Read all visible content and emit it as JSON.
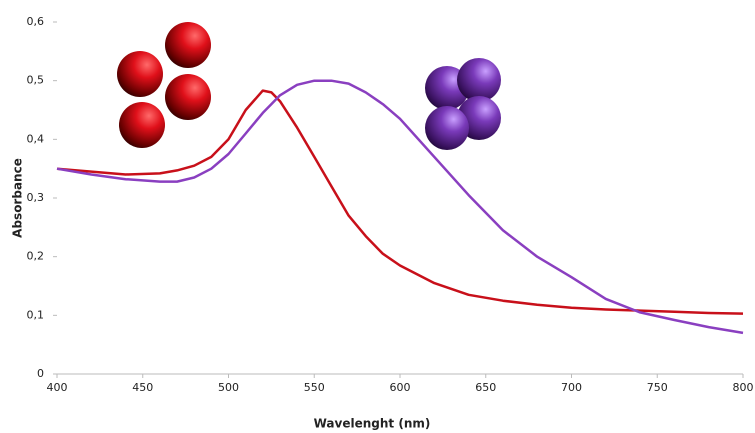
{
  "chart_data": {
    "type": "line",
    "x_label": "Wavelenght (nm)",
    "y_label": "Absorbance",
    "x": [
      400,
      420,
      440,
      460,
      470,
      480,
      490,
      500,
      510,
      520,
      525,
      530,
      540,
      550,
      560,
      570,
      580,
      590,
      600,
      620,
      640,
      660,
      680,
      700,
      720,
      740,
      760,
      780,
      800
    ],
    "series": [
      {
        "color": "#c8101a",
        "values": [
          0.35,
          0.345,
          0.34,
          0.342,
          0.347,
          0.355,
          0.37,
          0.4,
          0.45,
          0.483,
          0.48,
          0.465,
          0.42,
          0.37,
          0.32,
          0.27,
          0.235,
          0.205,
          0.185,
          0.155,
          0.135,
          0.125,
          0.118,
          0.113,
          0.11,
          0.108,
          0.106,
          0.104,
          0.103
        ]
      },
      {
        "color": "#8a3fc0",
        "values": [
          0.35,
          0.34,
          0.332,
          0.328,
          0.328,
          0.335,
          0.35,
          0.375,
          0.41,
          0.445,
          0.46,
          0.475,
          0.493,
          0.5,
          0.5,
          0.495,
          0.48,
          0.46,
          0.435,
          0.37,
          0.305,
          0.245,
          0.2,
          0.165,
          0.128,
          0.105,
          0.092,
          0.08,
          0.07
        ]
      }
    ],
    "xlim": [
      400,
      800
    ],
    "xticks": [
      400,
      450,
      500,
      550,
      600,
      650,
      700,
      750,
      800
    ],
    "ylim": [
      0,
      0.6
    ],
    "yticks": [
      0,
      {
        "value": 0.1,
        "label": "0,1"
      },
      {
        "value": 0.2,
        "label": "0,2"
      },
      {
        "value": 0.3,
        "label": "0,3"
      },
      {
        "value": 0.4,
        "label": "0,4"
      },
      {
        "value": 0.5,
        "label": "0,5"
      },
      {
        "value": 0.6,
        "label": "0,6"
      }
    ]
  }
}
